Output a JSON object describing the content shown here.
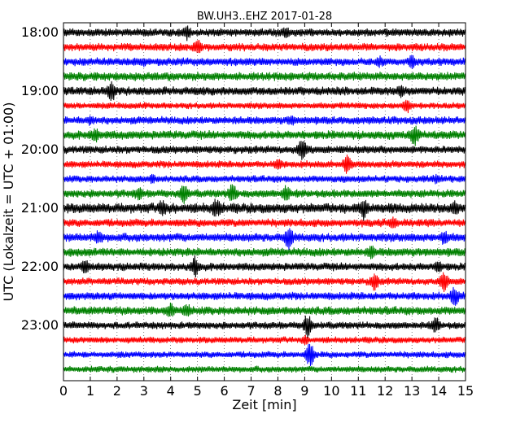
{
  "chart_data": {
    "type": "line",
    "title": "BW.UH3..EHZ 2017-01-28",
    "xlabel": "Zeit  [min]",
    "ylabel": "UTC (Lokalzeit = UTC + 01:00)",
    "xlim": [
      0,
      15
    ],
    "x_ticks": [
      "0",
      "1",
      "2",
      "3",
      "4",
      "5",
      "6",
      "7",
      "8",
      "9",
      "10",
      "11",
      "12",
      "13",
      "14",
      "15"
    ],
    "y_ticks": [
      "18:00",
      "19:00",
      "20:00",
      "21:00",
      "22:00",
      "23:00"
    ],
    "grid": "x-dotted",
    "trace_colors": [
      "#000000",
      "#ff0000",
      "#0000ff",
      "#008000"
    ],
    "traces": [
      {
        "start": "18:00",
        "color": "#000000",
        "amplitude": 0.55,
        "spikes": [
          [
            4.6,
            1.0
          ],
          [
            8.3,
            0.7
          ]
        ]
      },
      {
        "start": "18:15",
        "color": "#ff0000",
        "amplitude": 0.55,
        "spikes": [
          [
            5.0,
            1.2
          ]
        ]
      },
      {
        "start": "18:30",
        "color": "#0000ff",
        "amplitude": 0.55,
        "spikes": [
          [
            3.0,
            0.6
          ],
          [
            11.8,
            0.7
          ],
          [
            13.0,
            0.9
          ]
        ]
      },
      {
        "start": "18:45",
        "color": "#008000",
        "amplitude": 0.6,
        "spikes": []
      },
      {
        "start": "19:00",
        "color": "#000000",
        "amplitude": 0.6,
        "spikes": [
          [
            1.8,
            1.6
          ],
          [
            12.6,
            0.9
          ]
        ]
      },
      {
        "start": "19:15",
        "color": "#ff0000",
        "amplitude": 0.45,
        "spikes": [
          [
            12.8,
            1.2
          ]
        ]
      },
      {
        "start": "19:30",
        "color": "#0000ff",
        "amplitude": 0.55,
        "spikes": [
          [
            1.0,
            0.6
          ],
          [
            8.5,
            0.7
          ]
        ]
      },
      {
        "start": "19:45",
        "color": "#008000",
        "amplitude": 0.6,
        "spikes": [
          [
            1.2,
            0.9
          ],
          [
            13.1,
            1.5
          ]
        ]
      },
      {
        "start": "20:00",
        "color": "#000000",
        "amplitude": 0.55,
        "spikes": [
          [
            8.9,
            1.8
          ]
        ]
      },
      {
        "start": "20:15",
        "color": "#ff0000",
        "amplitude": 0.5,
        "spikes": [
          [
            8.0,
            0.7
          ],
          [
            10.6,
            1.5
          ]
        ]
      },
      {
        "start": "20:30",
        "color": "#0000ff",
        "amplitude": 0.5,
        "spikes": [
          [
            3.3,
            0.6
          ],
          [
            13.9,
            0.6
          ]
        ]
      },
      {
        "start": "20:45",
        "color": "#008000",
        "amplitude": 0.55,
        "spikes": [
          [
            2.8,
            0.9
          ],
          [
            4.5,
            1.5
          ],
          [
            6.3,
            1.5
          ],
          [
            8.3,
            1.2
          ]
        ]
      },
      {
        "start": "21:00",
        "color": "#000000",
        "amplitude": 0.7,
        "spikes": [
          [
            3.7,
            1.3
          ],
          [
            5.7,
            1.4
          ],
          [
            11.2,
            1.6
          ],
          [
            14.6,
            1.0
          ]
        ]
      },
      {
        "start": "21:15",
        "color": "#ff0000",
        "amplitude": 0.55,
        "spikes": [
          [
            12.3,
            0.8
          ]
        ]
      },
      {
        "start": "21:30",
        "color": "#0000ff",
        "amplitude": 0.6,
        "spikes": [
          [
            1.3,
            1.0
          ],
          [
            8.4,
            1.7
          ],
          [
            14.2,
            1.0
          ]
        ]
      },
      {
        "start": "21:45",
        "color": "#008000",
        "amplitude": 0.6,
        "spikes": [
          [
            11.5,
            0.9
          ]
        ]
      },
      {
        "start": "22:00",
        "color": "#000000",
        "amplitude": 0.55,
        "spikes": [
          [
            0.8,
            1.0
          ],
          [
            4.9,
            1.5
          ],
          [
            14.0,
            0.8
          ]
        ]
      },
      {
        "start": "22:15",
        "color": "#ff0000",
        "amplitude": 0.5,
        "spikes": [
          [
            11.6,
            1.4
          ],
          [
            14.2,
            1.4
          ]
        ]
      },
      {
        "start": "22:30",
        "color": "#0000ff",
        "amplitude": 0.55,
        "spikes": [
          [
            14.6,
            1.4
          ]
        ]
      },
      {
        "start": "22:45",
        "color": "#008000",
        "amplitude": 0.6,
        "spikes": [
          [
            4.0,
            1.0
          ],
          [
            4.6,
            1.0
          ]
        ]
      },
      {
        "start": "23:00",
        "color": "#000000",
        "amplitude": 0.5,
        "spikes": [
          [
            9.1,
            1.8
          ],
          [
            13.9,
            1.2
          ]
        ]
      },
      {
        "start": "23:15",
        "color": "#ff0000",
        "amplitude": 0.45,
        "spikes": [
          [
            9.0,
            0.6
          ]
        ]
      },
      {
        "start": "23:30",
        "color": "#0000ff",
        "amplitude": 0.45,
        "spikes": [
          [
            9.2,
            1.9
          ]
        ]
      },
      {
        "start": "23:45",
        "color": "#008000",
        "amplitude": 0.45,
        "spikes": []
      }
    ]
  }
}
